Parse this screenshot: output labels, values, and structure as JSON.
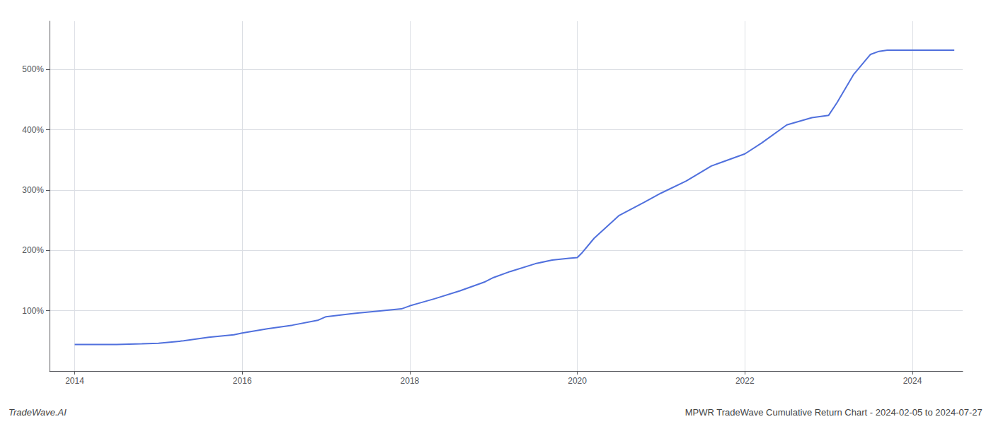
{
  "chart_data": {
    "type": "line",
    "annotations": [
      "TradeWave.AI",
      "MPWR TradeWave Cumulative Return Chart - 2024-02-05 to 2024-07-27"
    ],
    "x": [
      2014.0,
      2014.2,
      2014.5,
      2014.8,
      2015.0,
      2015.3,
      2015.6,
      2015.9,
      2016.0,
      2016.3,
      2016.6,
      2016.9,
      2017.0,
      2017.3,
      2017.6,
      2017.9,
      2018.0,
      2018.1,
      2018.3,
      2018.6,
      2018.9,
      2019.0,
      2019.2,
      2019.5,
      2019.7,
      2019.9,
      2020.0,
      2020.05,
      2020.2,
      2020.5,
      2020.8,
      2021.0,
      2021.3,
      2021.6,
      2021.9,
      2022.0,
      2022.2,
      2022.5,
      2022.8,
      2023.0,
      2023.1,
      2023.3,
      2023.5,
      2023.6,
      2023.7,
      2023.9,
      2024.0,
      2024.2,
      2024.5
    ],
    "values": [
      44,
      44,
      44,
      45,
      46,
      50,
      56,
      60,
      63,
      70,
      76,
      84,
      90,
      95,
      99,
      103,
      108,
      112,
      120,
      133,
      148,
      155,
      165,
      178,
      184,
      187,
      188,
      195,
      220,
      258,
      280,
      295,
      315,
      340,
      355,
      360,
      378,
      408,
      420,
      424,
      445,
      492,
      525,
      530,
      532,
      532,
      532,
      532,
      532
    ],
    "xlim": [
      2013.7,
      2024.6
    ],
    "ylim": [
      0,
      580
    ],
    "xticks": [
      2014,
      2016,
      2018,
      2020,
      2022,
      2024
    ],
    "yticks": [
      {
        "value": 100,
        "label": "100%"
      },
      {
        "value": 200,
        "label": "200%"
      },
      {
        "value": 300,
        "label": "300%"
      },
      {
        "value": 400,
        "label": "400%"
      },
      {
        "value": 500,
        "label": "500%"
      }
    ],
    "grid": true
  }
}
